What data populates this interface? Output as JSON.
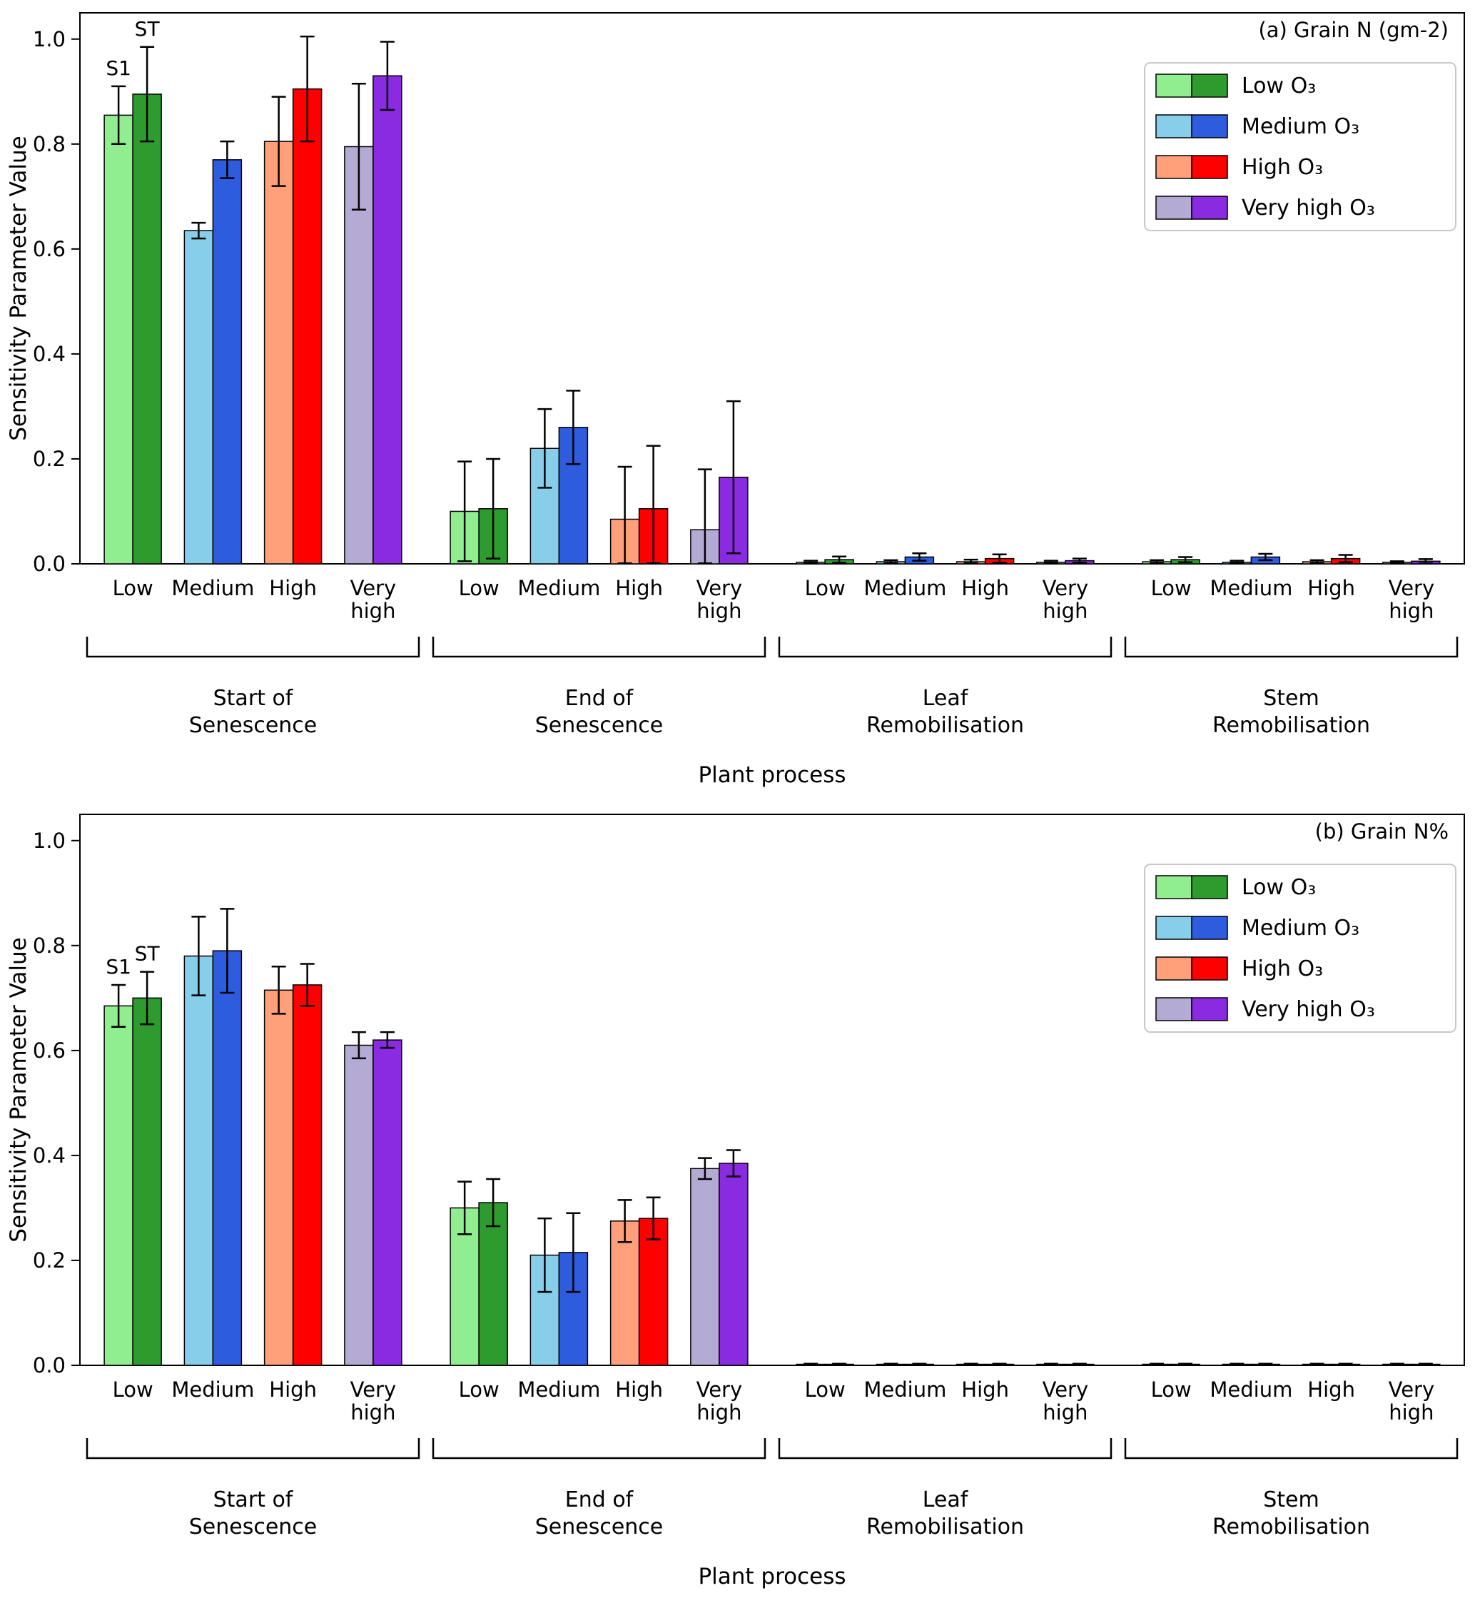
{
  "chart_data": [
    {
      "type": "bar",
      "title": "(a) Grain N (gm-2)",
      "xlabel": "Plant process",
      "ylabel": "Sensitivity Parameter Value",
      "ylim": [
        0,
        1.05
      ],
      "yticks": [
        "0.0",
        "0.2",
        "0.4",
        "0.6",
        "0.8",
        "1.0"
      ],
      "grid": false,
      "legend_position": "upper right",
      "annotations": {
        "s1": "S1",
        "st": "ST"
      },
      "process_groups": [
        "Start of\nSenescence",
        "End of\nSenescence",
        "Leaf\nRemobilisation",
        "Stem\nRemobilisation"
      ],
      "xticklabels": [
        "Low",
        "Medium",
        "High",
        "Very\nhigh"
      ],
      "legend": [
        {
          "label": "Low O₃",
          "light": "#90EE90",
          "dark": "#2E9B2E"
        },
        {
          "label": "Medium O₃",
          "light": "#87CEEB",
          "dark": "#2E5CDF"
        },
        {
          "label": "High O₃",
          "light": "#FFA07A",
          "dark": "#FF0000"
        },
        {
          "label": "Very high O₃",
          "light": "#B4ABD5",
          "dark": "#8A2BE2"
        }
      ],
      "series": [
        {
          "name": "S1",
          "shade": "light",
          "values": [
            [
              0.855,
              0.635,
              0.805,
              0.795
            ],
            [
              0.1,
              0.22,
              0.085,
              0.065
            ],
            [
              0.003,
              0.004,
              0.004,
              0.003
            ],
            [
              0.004,
              0.003,
              0.004,
              0.003
            ]
          ],
          "errors": [
            [
              0.055,
              0.015,
              0.085,
              0.12
            ],
            [
              0.095,
              0.075,
              0.1,
              0.115
            ],
            [
              0.003,
              0.003,
              0.004,
              0.003
            ],
            [
              0.003,
              0.003,
              0.003,
              0.002
            ]
          ]
        },
        {
          "name": "ST",
          "shade": "dark",
          "values": [
            [
              0.895,
              0.77,
              0.905,
              0.93
            ],
            [
              0.105,
              0.26,
              0.105,
              0.165
            ],
            [
              0.008,
              0.013,
              0.01,
              0.006
            ],
            [
              0.008,
              0.013,
              0.01,
              0.005
            ]
          ],
          "errors": [
            [
              0.09,
              0.035,
              0.1,
              0.065
            ],
            [
              0.095,
              0.07,
              0.12,
              0.145
            ],
            [
              0.006,
              0.007,
              0.008,
              0.004
            ],
            [
              0.005,
              0.006,
              0.007,
              0.004
            ]
          ]
        }
      ]
    },
    {
      "type": "bar",
      "title": "(b) Grain N%",
      "xlabel": "Plant process",
      "ylabel": "Sensitivity Parameter Value",
      "ylim": [
        0,
        1.05
      ],
      "yticks": [
        "0.0",
        "0.2",
        "0.4",
        "0.6",
        "0.8",
        "1.0"
      ],
      "grid": false,
      "legend_position": "upper right",
      "annotations": {
        "s1": "S1",
        "st": "ST"
      },
      "process_groups": [
        "Start of\nSenescence",
        "End of\nSenescence",
        "Leaf\nRemobilisation",
        "Stem\nRemobilisation"
      ],
      "xticklabels": [
        "Low",
        "Medium",
        "High",
        "Very\nhigh"
      ],
      "legend": [
        {
          "label": "Low O₃",
          "light": "#90EE90",
          "dark": "#2E9B2E"
        },
        {
          "label": "Medium O₃",
          "light": "#87CEEB",
          "dark": "#2E5CDF"
        },
        {
          "label": "High O₃",
          "light": "#FFA07A",
          "dark": "#FF0000"
        },
        {
          "label": "Very high O₃",
          "light": "#B4ABD5",
          "dark": "#8A2BE2"
        }
      ],
      "series": [
        {
          "name": "S1",
          "shade": "light",
          "values": [
            [
              0.685,
              0.78,
              0.715,
              0.61
            ],
            [
              0.3,
              0.21,
              0.275,
              0.375
            ],
            [
              0.002,
              0.002,
              0.002,
              0.002
            ],
            [
              0.002,
              0.002,
              0.002,
              0.002
            ]
          ],
          "errors": [
            [
              0.04,
              0.075,
              0.045,
              0.025
            ],
            [
              0.05,
              0.07,
              0.04,
              0.02
            ],
            [
              0.001,
              0.001,
              0.001,
              0.001
            ],
            [
              0.001,
              0.001,
              0.001,
              0.001
            ]
          ]
        },
        {
          "name": "ST",
          "shade": "dark",
          "values": [
            [
              0.7,
              0.79,
              0.725,
              0.62
            ],
            [
              0.31,
              0.215,
              0.28,
              0.385
            ],
            [
              0.002,
              0.002,
              0.002,
              0.002
            ],
            [
              0.002,
              0.002,
              0.002,
              0.002
            ]
          ],
          "errors": [
            [
              0.05,
              0.08,
              0.04,
              0.015
            ],
            [
              0.045,
              0.075,
              0.04,
              0.025
            ],
            [
              0.001,
              0.001,
              0.001,
              0.001
            ],
            [
              0.001,
              0.001,
              0.001,
              0.001
            ]
          ]
        }
      ]
    }
  ]
}
